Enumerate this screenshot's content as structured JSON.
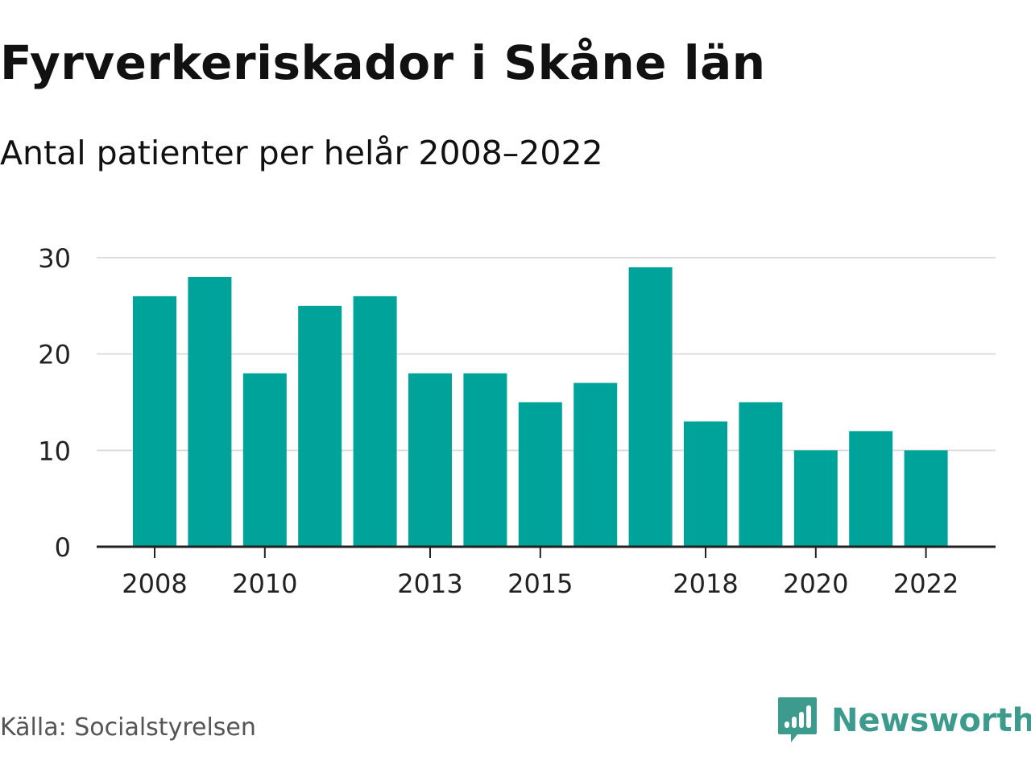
{
  "title": "Fyrverkeriskador i Skåne län",
  "subtitle": "Antal patienter per helår 2008–2022",
  "source": "Källa: Socialstyrelsen",
  "brand": {
    "name": "Newsworthy",
    "icon": "newsworthy-logo-icon",
    "color": "#3c9b8c"
  },
  "colors": {
    "bar": "#00a39a",
    "grid": "#dddddd",
    "axis": "#222222"
  },
  "chart_data": {
    "type": "bar",
    "categories": [
      2008,
      2009,
      2010,
      2011,
      2012,
      2013,
      2014,
      2015,
      2016,
      2017,
      2018,
      2019,
      2020,
      2021,
      2022
    ],
    "values": [
      26,
      28,
      18,
      25,
      26,
      18,
      18,
      15,
      17,
      29,
      13,
      15,
      10,
      12,
      10
    ],
    "x_tick_labels": [
      "2008",
      "2010",
      "2013",
      "2015",
      "2018",
      "2020",
      "2022"
    ],
    "y_ticks": [
      0,
      10,
      20,
      30
    ],
    "ylim": [
      0,
      30
    ],
    "grid": true
  }
}
